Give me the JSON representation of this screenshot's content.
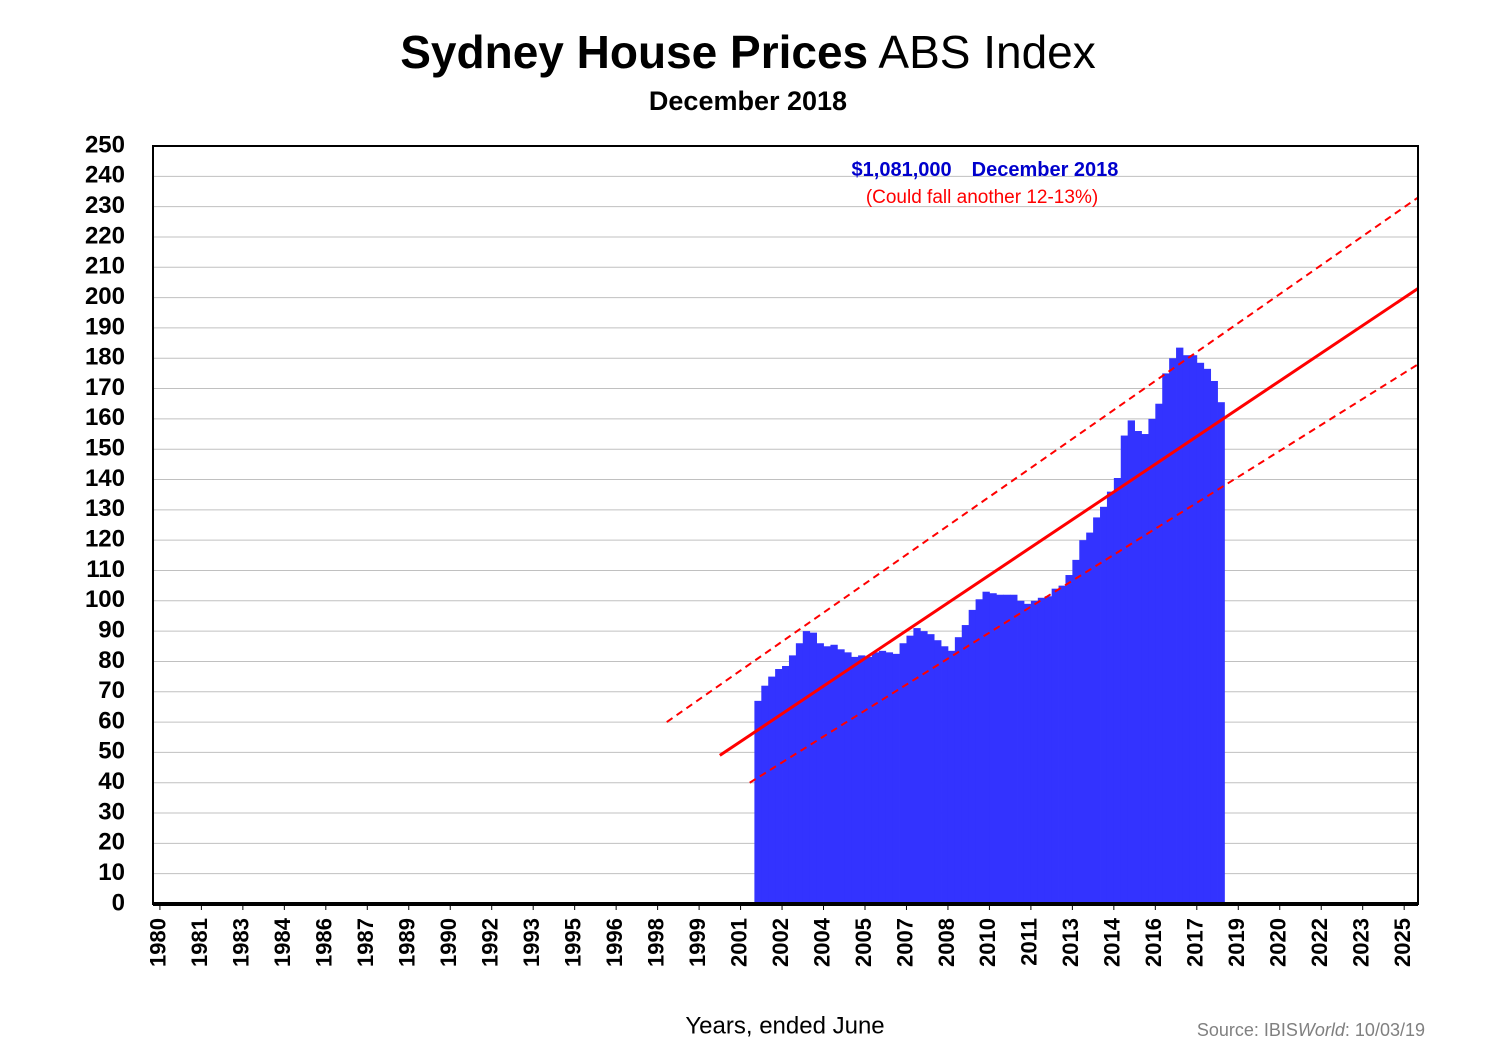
{
  "chart_data": {
    "type": "bar",
    "title": "Sydney House Prices",
    "title_suffix": "ABS Index",
    "subtitle": "December 2018",
    "annotations": [
      {
        "text": "$1,081,000",
        "color": "#0000cc"
      },
      {
        "text": "December 2018",
        "color": "#0000cc"
      },
      {
        "text": "(Could fall another 12-13%)",
        "color": "#ff0000"
      }
    ],
    "xlabel": "Years, ended June",
    "source": [
      "Source: IBIS",
      "World",
      ": 10/03/19"
    ],
    "color": "#3333ff",
    "x": [
      2001.5,
      2001.75,
      2002,
      2002.25,
      2002.5,
      2002.75,
      2003,
      2003.25,
      2003.5,
      2003.75,
      2004,
      2004.25,
      2004.5,
      2004.75,
      2005,
      2005.25,
      2005.5,
      2005.75,
      2006,
      2006.25,
      2006.5,
      2006.75,
      2007,
      2007.25,
      2007.5,
      2007.75,
      2008,
      2008.25,
      2008.5,
      2008.75,
      2009,
      2009.25,
      2009.5,
      2009.75,
      2010,
      2010.25,
      2010.5,
      2010.75,
      2011,
      2011.25,
      2011.5,
      2011.75,
      2012,
      2012.25,
      2012.5,
      2012.75,
      2013,
      2013.25,
      2013.5,
      2013.75,
      2014,
      2014.25,
      2014.5,
      2014.75,
      2015,
      2015.25,
      2015.5,
      2015.75,
      2016,
      2016.25,
      2016.5,
      2016.75,
      2017,
      2017.25,
      2017.5,
      2017.75,
      2018,
      2018.25
    ],
    "values": [
      67,
      72,
      75,
      77.5,
      78.5,
      82,
      86,
      90,
      89.5,
      86,
      85,
      85.5,
      84,
      83,
      81.5,
      82,
      81.5,
      83,
      83.5,
      83,
      82.5,
      86,
      88.5,
      91,
      90,
      89,
      87,
      85,
      83.5,
      88,
      92,
      97,
      100.5,
      103,
      102.5,
      102,
      102,
      102,
      100,
      99,
      100,
      101,
      101.5,
      104,
      105,
      108.5,
      113.5,
      120,
      122.5,
      127.5,
      131,
      136,
      140.5,
      154.5,
      159.5,
      156,
      155,
      160,
      165,
      175,
      180,
      183.5,
      181,
      181,
      178.5,
      176.5,
      172.5,
      165.5
    ],
    "lines": [
      {
        "x": [
          2000.25,
          2025.5
        ],
        "values": [
          49,
          203
        ],
        "color": "#ff0000",
        "dashed": false
      },
      {
        "x": [
          1998.33,
          2025.5
        ],
        "values": [
          60,
          233
        ],
        "color": "#ff0000",
        "dashed": true
      },
      {
        "x": [
          2001.33,
          2025.5
        ],
        "values": [
          40,
          178
        ],
        "color": "#ff0000",
        "dashed": true
      }
    ],
    "xlim": [
      1979.75,
      2025.5
    ],
    "xticks": [
      {
        "value": 1980,
        "label": "1980"
      },
      {
        "value": 1981.5,
        "label": "1981"
      },
      {
        "value": 1983,
        "label": "1983"
      },
      {
        "value": 1984.5,
        "label": "1984"
      },
      {
        "value": 1986,
        "label": "1986"
      },
      {
        "value": 1987.5,
        "label": "1987"
      },
      {
        "value": 1989,
        "label": "1989"
      },
      {
        "value": 1990.5,
        "label": "1990"
      },
      {
        "value": 1992,
        "label": "1992"
      },
      {
        "value": 1993.5,
        "label": "1993"
      },
      {
        "value": 1995,
        "label": "1995"
      },
      {
        "value": 1996.5,
        "label": "1996"
      },
      {
        "value": 1998,
        "label": "1998"
      },
      {
        "value": 1999.5,
        "label": "1999"
      },
      {
        "value": 2001,
        "label": "2001"
      },
      {
        "value": 2002.5,
        "label": "2002"
      },
      {
        "value": 2004,
        "label": "2004"
      },
      {
        "value": 2005.5,
        "label": "2005"
      },
      {
        "value": 2007,
        "label": "2007"
      },
      {
        "value": 2008.5,
        "label": "2008"
      },
      {
        "value": 2010,
        "label": "2010"
      },
      {
        "value": 2011.5,
        "label": "2011"
      },
      {
        "value": 2013,
        "label": "2013"
      },
      {
        "value": 2014.5,
        "label": "2014"
      },
      {
        "value": 2016,
        "label": "2016"
      },
      {
        "value": 2017.5,
        "label": "2017"
      },
      {
        "value": 2019,
        "label": "2019"
      },
      {
        "value": 2020.5,
        "label": "2020"
      },
      {
        "value": 2022,
        "label": "2022"
      },
      {
        "value": 2023.5,
        "label": "2023"
      },
      {
        "value": 2025,
        "label": "2025"
      }
    ],
    "ylim": [
      0,
      250
    ],
    "yticks": [
      0,
      10,
      20,
      30,
      40,
      50,
      60,
      70,
      80,
      90,
      100,
      110,
      120,
      130,
      140,
      150,
      160,
      170,
      180,
      190,
      200,
      210,
      220,
      230,
      240,
      250
    ],
    "grid": true
  }
}
